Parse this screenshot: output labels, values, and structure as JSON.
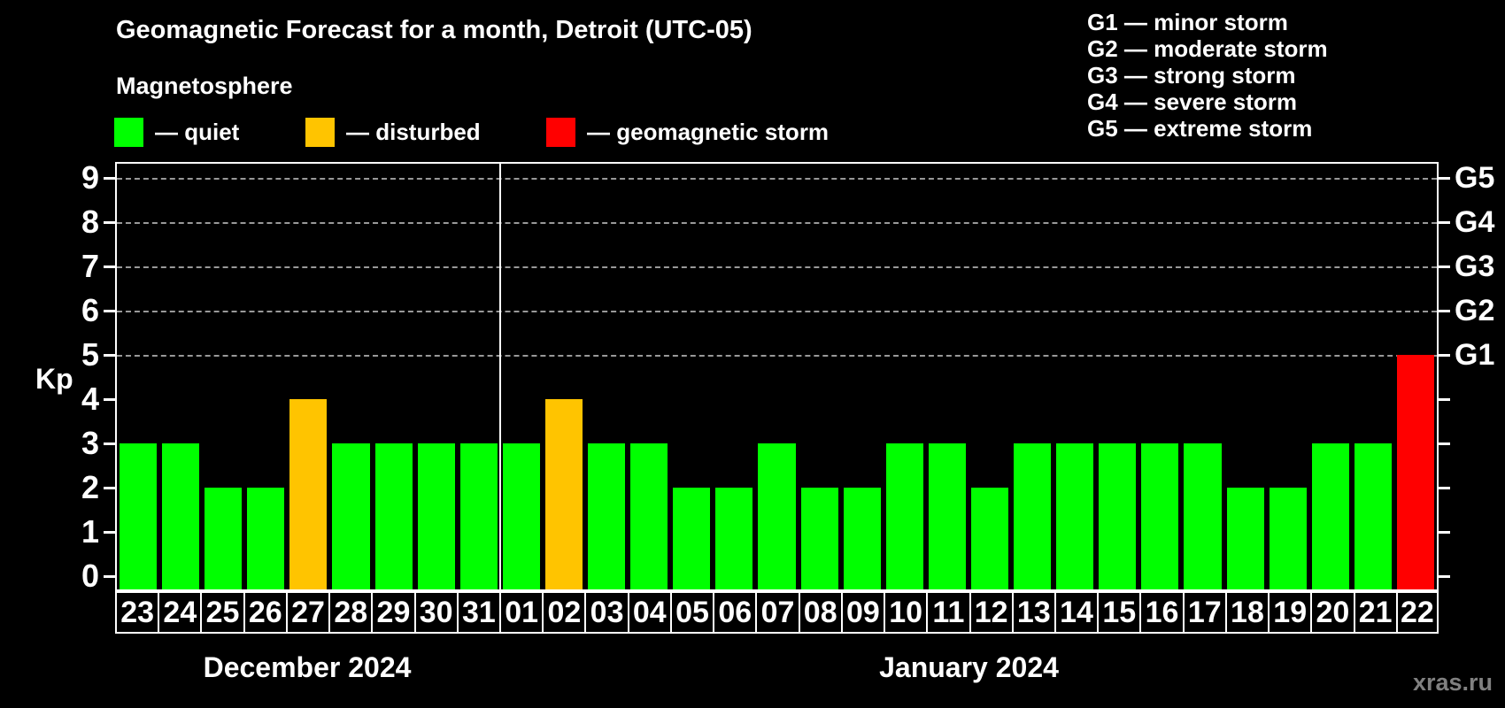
{
  "header": {
    "title": "Geomagnetic Forecast for a month, Detroit (UTC-05)",
    "subtitle": "Magnetosphere"
  },
  "legend": {
    "items": [
      {
        "name": "quiet",
        "label": "— quiet",
        "color": "#00ff00",
        "x": 129
      },
      {
        "name": "disturbed",
        "label": "— disturbed",
        "color": "#ffc400",
        "x": 345
      },
      {
        "name": "storm",
        "label": "— geomagnetic storm",
        "color": "#ff0000",
        "x": 617
      }
    ]
  },
  "storm_legend": {
    "lines": [
      "G1 — minor storm",
      "G2 — moderate storm",
      "G3 — strong storm",
      "G4 — severe storm",
      "G5 — extreme storm"
    ]
  },
  "axis": {
    "kp_label": "Kp",
    "yticks": [
      0,
      1,
      2,
      3,
      4,
      5,
      6,
      7,
      8,
      9
    ],
    "gridline_levels": [
      5,
      6,
      7,
      8,
      9
    ],
    "g_levels": [
      {
        "kp": 5,
        "label": "G1"
      },
      {
        "kp": 6,
        "label": "G2"
      },
      {
        "kp": 7,
        "label": "G3"
      },
      {
        "kp": 8,
        "label": "G4"
      },
      {
        "kp": 9,
        "label": "G5"
      }
    ]
  },
  "chart_data": {
    "type": "bar",
    "title": "Geomagnetic Forecast for a month, Detroit (UTC-05)",
    "xlabel": "",
    "ylabel": "Kp",
    "ylim": [
      0,
      9
    ],
    "grid": "dashed horizontal at Kp 5-9 (G1-G5)",
    "legend_position": "top-left",
    "categories": [
      "23",
      "24",
      "25",
      "26",
      "27",
      "28",
      "29",
      "30",
      "31",
      "01",
      "02",
      "03",
      "04",
      "05",
      "06",
      "07",
      "08",
      "09",
      "10",
      "11",
      "12",
      "13",
      "14",
      "15",
      "16",
      "17",
      "18",
      "19",
      "20",
      "21",
      "22"
    ],
    "values": [
      3,
      3,
      2,
      2,
      4,
      3,
      3,
      3,
      3,
      3,
      4,
      3,
      3,
      2,
      2,
      3,
      2,
      2,
      3,
      3,
      2,
      3,
      3,
      3,
      3,
      3,
      2,
      2,
      3,
      3,
      5
    ],
    "statuses": [
      "quiet",
      "quiet",
      "quiet",
      "quiet",
      "disturbed",
      "quiet",
      "quiet",
      "quiet",
      "quiet",
      "quiet",
      "disturbed",
      "quiet",
      "quiet",
      "quiet",
      "quiet",
      "quiet",
      "quiet",
      "quiet",
      "quiet",
      "quiet",
      "quiet",
      "quiet",
      "quiet",
      "quiet",
      "quiet",
      "quiet",
      "quiet",
      "quiet",
      "quiet",
      "quiet",
      "storm"
    ],
    "months": [
      {
        "label": "December 2024",
        "start": 0,
        "count": 9
      },
      {
        "label": "January 2024",
        "start": 9,
        "count": 22
      }
    ]
  },
  "colors": {
    "quiet": "#00ff00",
    "disturbed": "#ffc400",
    "storm": "#ff0000",
    "grid": "#999999",
    "frame": "#ffffff"
  },
  "watermark": "xras.ru"
}
